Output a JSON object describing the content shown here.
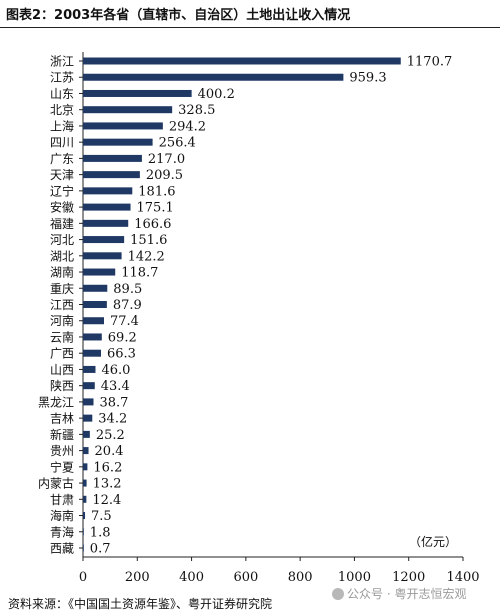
{
  "title": "图表2：2003年各省（直辖市、自治区）土地出让收入情况",
  "source": "资料来源：《中国国土资源年鉴》、粤开证券研究院",
  "watermark": "公众号 · 粤开志恒宏观",
  "chart_data": {
    "type": "bar",
    "orientation": "horizontal",
    "title": "图表2：2003年各省（直辖市、自治区）土地出让收入情况",
    "unit_label": "（亿元）",
    "categories": [
      "浙江",
      "江苏",
      "山东",
      "北京",
      "上海",
      "四川",
      "广东",
      "天津",
      "辽宁",
      "安徽",
      "福建",
      "河北",
      "湖北",
      "湖南",
      "重庆",
      "江西",
      "河南",
      "云南",
      "广西",
      "山西",
      "陕西",
      "黑龙江",
      "吉林",
      "新疆",
      "贵州",
      "宁夏",
      "内蒙古",
      "甘肃",
      "海南",
      "青海",
      "西藏"
    ],
    "values": [
      1170.7,
      959.3,
      400.2,
      328.5,
      294.2,
      256.4,
      217.0,
      209.5,
      181.6,
      175.1,
      166.6,
      151.6,
      142.2,
      118.7,
      89.5,
      87.9,
      77.4,
      69.2,
      66.3,
      46.0,
      43.4,
      38.7,
      34.2,
      25.2,
      20.4,
      16.2,
      13.2,
      12.4,
      7.5,
      1.8,
      0.7
    ],
    "value_labels": [
      "1170.7",
      "959.3",
      "400.2",
      "328.5",
      "294.2",
      "256.4",
      "217.0",
      "209.5",
      "181.6",
      "175.1",
      "166.6",
      "151.6",
      "142.2",
      "118.7",
      "89.5",
      "87.9",
      "77.4",
      "69.2",
      "66.3",
      "46.0",
      "43.4",
      "38.7",
      "34.2",
      "25.2",
      "20.4",
      "16.2",
      "13.2",
      "12.4",
      "7.5",
      "1.8",
      "0.7"
    ],
    "x_ticks": [
      "0",
      "200",
      "400",
      "600",
      "800",
      "1000",
      "1200",
      "1400"
    ],
    "xlim": [
      0,
      1400
    ],
    "grid": false,
    "bar_color": "#1f3864"
  }
}
